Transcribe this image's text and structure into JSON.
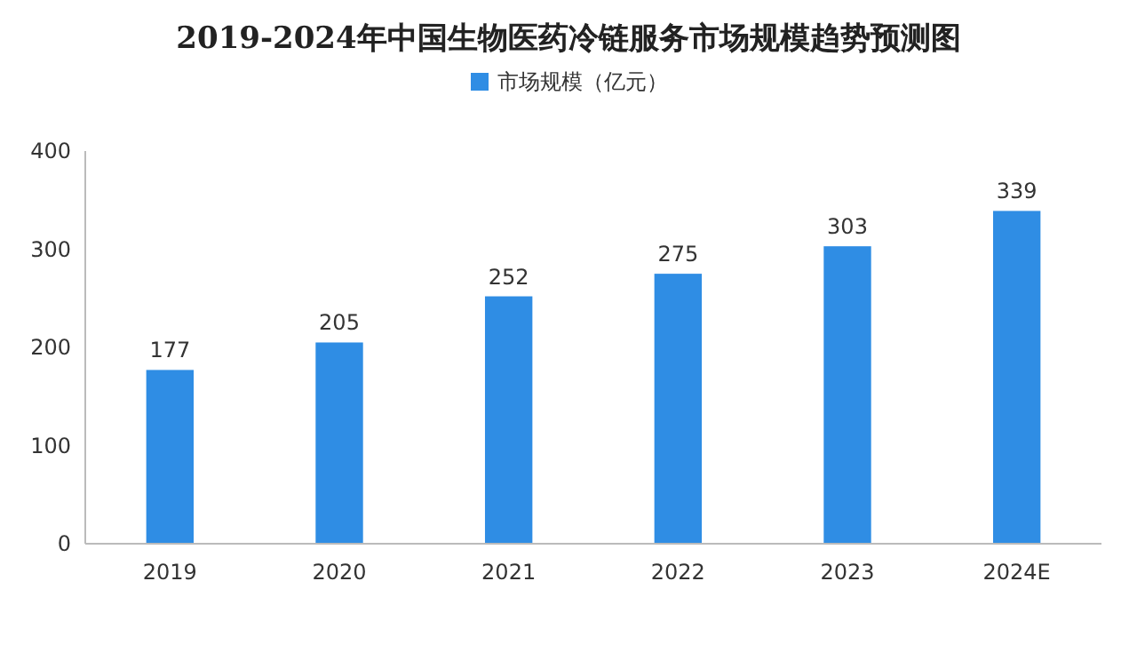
{
  "chart_data": {
    "type": "bar",
    "title": "2019-2024年中国生物医药冷链服务市场规模趋势预测图",
    "categories": [
      "2019",
      "2020",
      "2021",
      "2022",
      "2023",
      "2024E"
    ],
    "series": [
      {
        "name": "市场规模（亿元）",
        "color": "#2f8de4",
        "values": [
          177,
          205,
          252,
          275,
          303,
          339
        ]
      }
    ],
    "ylim": [
      0,
      400
    ],
    "yticks": [
      0,
      100,
      200,
      300,
      400
    ],
    "grid": false,
    "legend": "top",
    "data_labels": true
  }
}
